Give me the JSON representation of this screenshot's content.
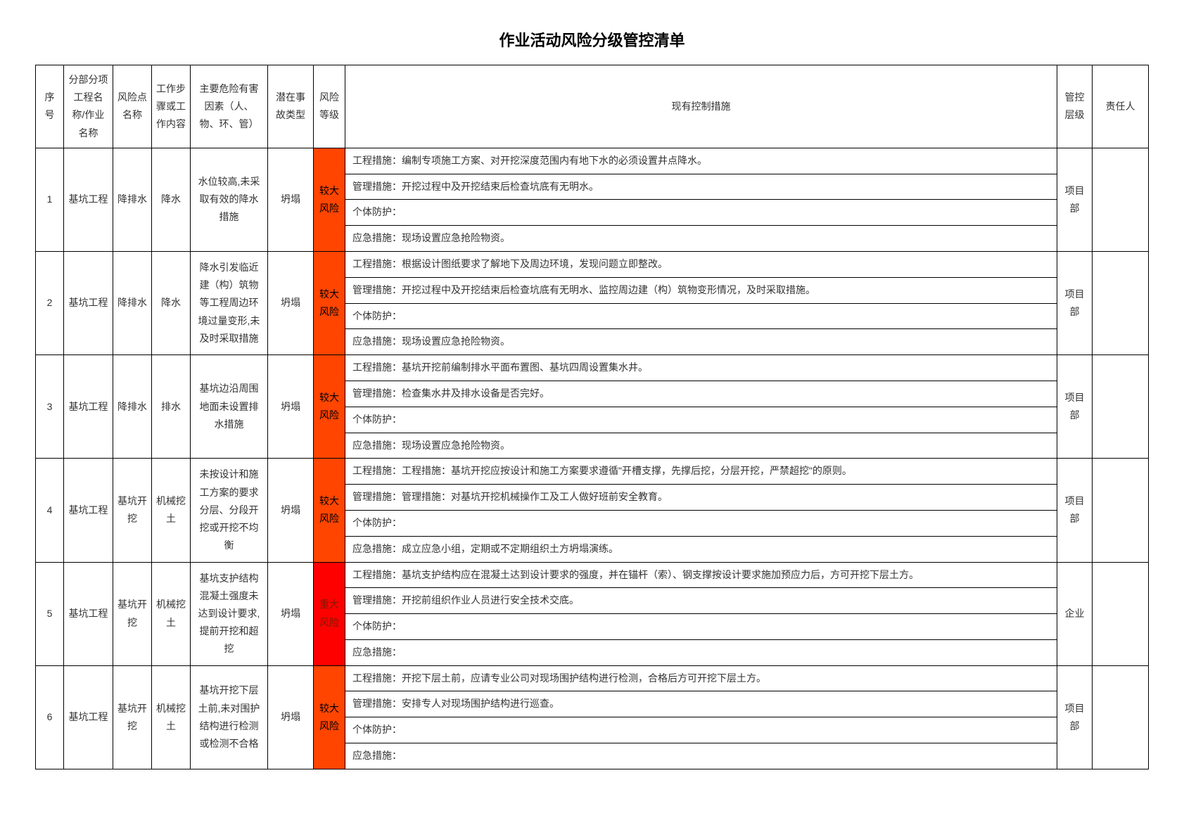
{
  "title": "作业活动风险分级管控清单",
  "headers": {
    "seq": "序号",
    "project": "分部分项工程名称/作业名称",
    "riskpoint": "风险点名称",
    "step": "工作步骤或工作内容",
    "hazard": "主要危险有害因素（人、物、环、管）",
    "accident": "潜在事故类型",
    "level": "风险等级",
    "measures": "现有控制措施",
    "control": "管控层级",
    "person": "责任人"
  },
  "risk_colors": {
    "较大风险": "#ff4500",
    "重大风险": "#ff0000"
  },
  "rows": [
    {
      "seq": "1",
      "project": "基坑工程",
      "riskpoint": "降排水",
      "step": "降水",
      "hazard": "水位较高,未采取有效的降水措施",
      "accident": "坍塌",
      "level": "较大风险",
      "level_class": "risk-major",
      "measures": [
        "工程措施：编制专项施工方案、对开挖深度范围内有地下水的必须设置井点降水。",
        "管理措施：开挖过程中及开挖结束后检查坑底有无明水。",
        "个体防护：",
        "应急措施：现场设置应急抢险物资。"
      ],
      "control": "项目部",
      "person": ""
    },
    {
      "seq": "2",
      "project": "基坑工程",
      "riskpoint": "降排水",
      "step": "降水",
      "hazard": "降水引发临近建（构）筑物等工程周边环境过量变形,未及时采取措施",
      "accident": "坍塌",
      "level": "较大风险",
      "level_class": "risk-major",
      "measures": [
        "工程措施：根据设计图纸要求了解地下及周边环境，发现问题立即整改。",
        "管理措施：开挖过程中及开挖结束后检查坑底有无明水、监控周边建（构）筑物变形情况，及时采取措施。",
        "个体防护：",
        "应急措施：现场设置应急抢险物资。"
      ],
      "control": "项目部",
      "person": ""
    },
    {
      "seq": "3",
      "project": "基坑工程",
      "riskpoint": "降排水",
      "step": "排水",
      "hazard": "基坑边沿周围地面未设置排水措施",
      "accident": "坍塌",
      "level": "较大风险",
      "level_class": "risk-major",
      "measures": [
        "工程措施：基坑开挖前编制排水平面布置图、基坑四周设置集水井。",
        "管理措施：检查集水井及排水设备是否完好。",
        "个体防护：",
        "应急措施：现场设置应急抢险物资。"
      ],
      "control": "项目部",
      "person": ""
    },
    {
      "seq": "4",
      "project": "基坑工程",
      "riskpoint": "基坑开挖",
      "step": "机械挖土",
      "hazard": "未按设计和施工方案的要求分层、分段开挖或开挖不均衡",
      "accident": "坍塌",
      "level": "较大风险",
      "level_class": "risk-major",
      "measures": [
        "工程措施：工程措施：基坑开挖应按设计和施工方案要求遵循\"开槽支撑，先撑后挖，分层开挖，严禁超挖\"的原则。",
        "管理措施：管理措施：对基坑开挖机械操作工及工人做好班前安全教育。",
        "个体防护：",
        "应急措施：成立应急小组，定期或不定期组织土方坍塌演练。"
      ],
      "control": "项目部",
      "person": ""
    },
    {
      "seq": "5",
      "project": "基坑工程",
      "riskpoint": "基坑开挖",
      "step": "机械挖土",
      "hazard": "基坑支护结构混凝土强度未达到设计要求,提前开挖和超挖",
      "accident": "坍塌",
      "level": "重大风险",
      "level_class": "risk-critical",
      "measures": [
        "工程措施：基坑支护结构应在混凝土达到设计要求的强度，并在锚杆（索）、钢支撑按设计要求施加预应力后，方可开挖下层土方。",
        "管理措施：开挖前组织作业人员进行安全技术交底。",
        "个体防护：",
        "应急措施："
      ],
      "control": "企业",
      "person": ""
    },
    {
      "seq": "6",
      "project": "基坑工程",
      "riskpoint": "基坑开挖",
      "step": "机械挖土",
      "hazard": "基坑开挖下层土前,未对围护结构进行检测或检测不合格",
      "accident": "坍塌",
      "level": "较大风险",
      "level_class": "risk-major",
      "measures": [
        "工程措施：开挖下层土前，应请专业公司对现场围护结构进行检测，合格后方可开挖下层土方。",
        "管理措施：安排专人对现场围护结构进行巡查。",
        "个体防护：",
        "应急措施："
      ],
      "control": "项目部",
      "person": ""
    }
  ]
}
